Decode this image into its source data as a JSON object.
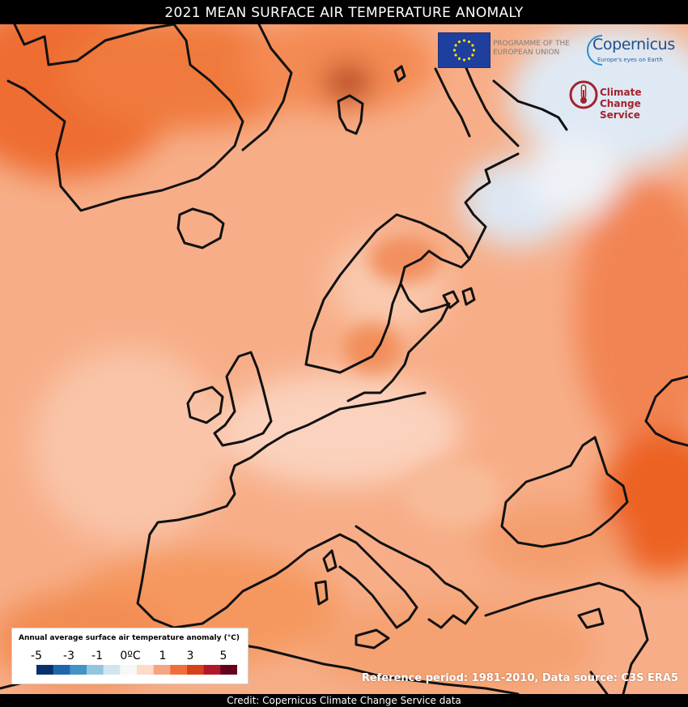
{
  "header": {
    "title": "2021 MEAN SURFACE AIR TEMPERATURE ANOMALY"
  },
  "footer": {
    "credit": "Credit: Copernicus Climate Change Service data"
  },
  "reference": {
    "text": "Reference period: 1981-2010, Data source: C3S ERA5"
  },
  "logos": {
    "eu_programme": "PROGRAMME OF THE EUROPEAN UNION",
    "copernicus": "Copernicus",
    "copernicus_tagline": "Europe's eyes on Earth",
    "c3s_line1": "Climate",
    "c3s_line2": "Change Service"
  },
  "legend": {
    "title": "Annual average surface air temperature anomaly (°C)",
    "ticks": [
      "-5",
      "-3",
      "-1",
      "0ºC",
      "1",
      "3",
      "5"
    ],
    "colors": [
      "#08306b",
      "#2166ac",
      "#4393c3",
      "#92c5de",
      "#d1e5f0",
      "#f7f7f7",
      "#fddbc7",
      "#f4a582",
      "#ef6f3a",
      "#d6401a",
      "#b2182b",
      "#67001f"
    ]
  },
  "map": {
    "colors": {
      "sea_base": "#f8b99a",
      "land_mid": "#f6a47c",
      "warm": "#f2864e",
      "hot": "#ee6a2c",
      "hotspot": "#b83a12",
      "cool": "#e8eef6",
      "cooler": "#c9d9ee",
      "coast": "#111111"
    }
  }
}
